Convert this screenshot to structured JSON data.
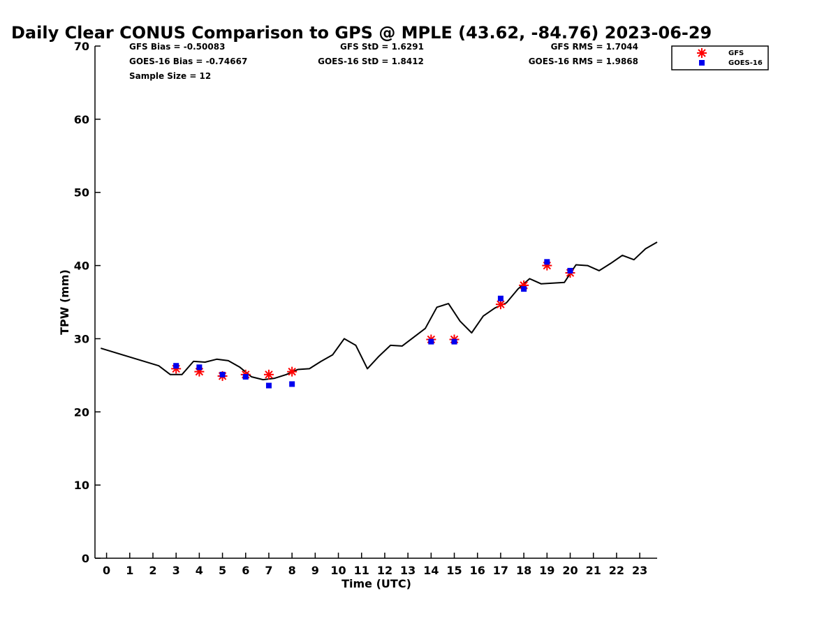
{
  "chart_data": {
    "type": "line",
    "title": "Daily Clear CONUS Comparison to GPS @ MPLE (43.62, -84.76) 2023-06-29",
    "xlabel": "Time (UTC)",
    "ylabel": "TPW (mm)",
    "xlim": [
      -0.5,
      23.75
    ],
    "ylim": [
      0,
      70
    ],
    "x_ticks": [
      0,
      1,
      2,
      3,
      4,
      5,
      6,
      7,
      8,
      9,
      10,
      11,
      12,
      13,
      14,
      15,
      16,
      17,
      18,
      19,
      20,
      21,
      22,
      23
    ],
    "y_ticks": [
      0,
      10,
      20,
      30,
      40,
      50,
      60,
      70
    ],
    "grid": false,
    "legend_position": "top-right",
    "stats": {
      "gfs_bias": "GFS Bias = -0.50083",
      "goes_bias": "GOES-16 Bias = -0.74667",
      "sample_size": "Sample Size = 12",
      "gfs_std": "GFS StD = 1.6291",
      "goes_std": "GOES-16 StD = 1.8412",
      "gfs_rms": "GFS RMS = 1.7044",
      "goes_rms": "GOES-16 RMS = 1.9868"
    },
    "series": [
      {
        "label": "GPS",
        "kind": "line",
        "color": "#000000",
        "x": [
          -0.25,
          2.25,
          2.75,
          3.25,
          3.75,
          4.25,
          4.75,
          5.25,
          5.75,
          6.25,
          6.75,
          7.25,
          7.75,
          8.25,
          8.75,
          9.25,
          9.75,
          10.25,
          10.75,
          11.25,
          11.75,
          12.25,
          12.75,
          13.25,
          13.75,
          14.25,
          14.75,
          15.25,
          15.75,
          16.25,
          16.75,
          17.25,
          17.75,
          18.25,
          18.75,
          19.25,
          19.75,
          20.25,
          20.75,
          21.25,
          21.75,
          22.25,
          22.75,
          23.25,
          23.75
        ],
        "y": [
          28.7,
          26.3,
          25.1,
          25.1,
          26.9,
          26.8,
          27.2,
          27.0,
          26.1,
          24.8,
          24.4,
          24.6,
          25.1,
          25.8,
          25.9,
          26.9,
          27.8,
          30.0,
          29.1,
          25.9,
          27.6,
          29.1,
          29.0,
          30.2,
          31.4,
          34.3,
          34.8,
          32.4,
          30.8,
          33.1,
          34.2,
          34.9,
          36.8,
          38.2,
          37.5,
          37.6,
          37.7,
          40.1,
          40.0,
          39.3,
          40.3,
          41.4,
          40.8,
          42.3,
          43.2
        ]
      },
      {
        "name": "GFS",
        "kind": "scatter",
        "marker": "asterisk",
        "color": "#ff0000",
        "x": [
          3,
          4,
          5,
          6,
          7,
          8,
          14,
          15,
          17,
          18,
          19,
          20
        ],
        "y": [
          25.9,
          25.5,
          24.9,
          25.1,
          25.1,
          25.5,
          29.9,
          29.9,
          34.7,
          37.3,
          40.0,
          39.0
        ]
      },
      {
        "name": "GOES-16",
        "kind": "scatter",
        "marker": "square",
        "color": "#0000ee",
        "x": [
          3,
          4,
          5,
          6,
          7,
          8,
          14,
          15,
          17,
          18,
          19,
          20
        ],
        "y": [
          26.3,
          26.1,
          25.1,
          24.8,
          23.6,
          23.8,
          29.6,
          29.6,
          35.5,
          36.8,
          40.5,
          39.3
        ]
      }
    ]
  }
}
